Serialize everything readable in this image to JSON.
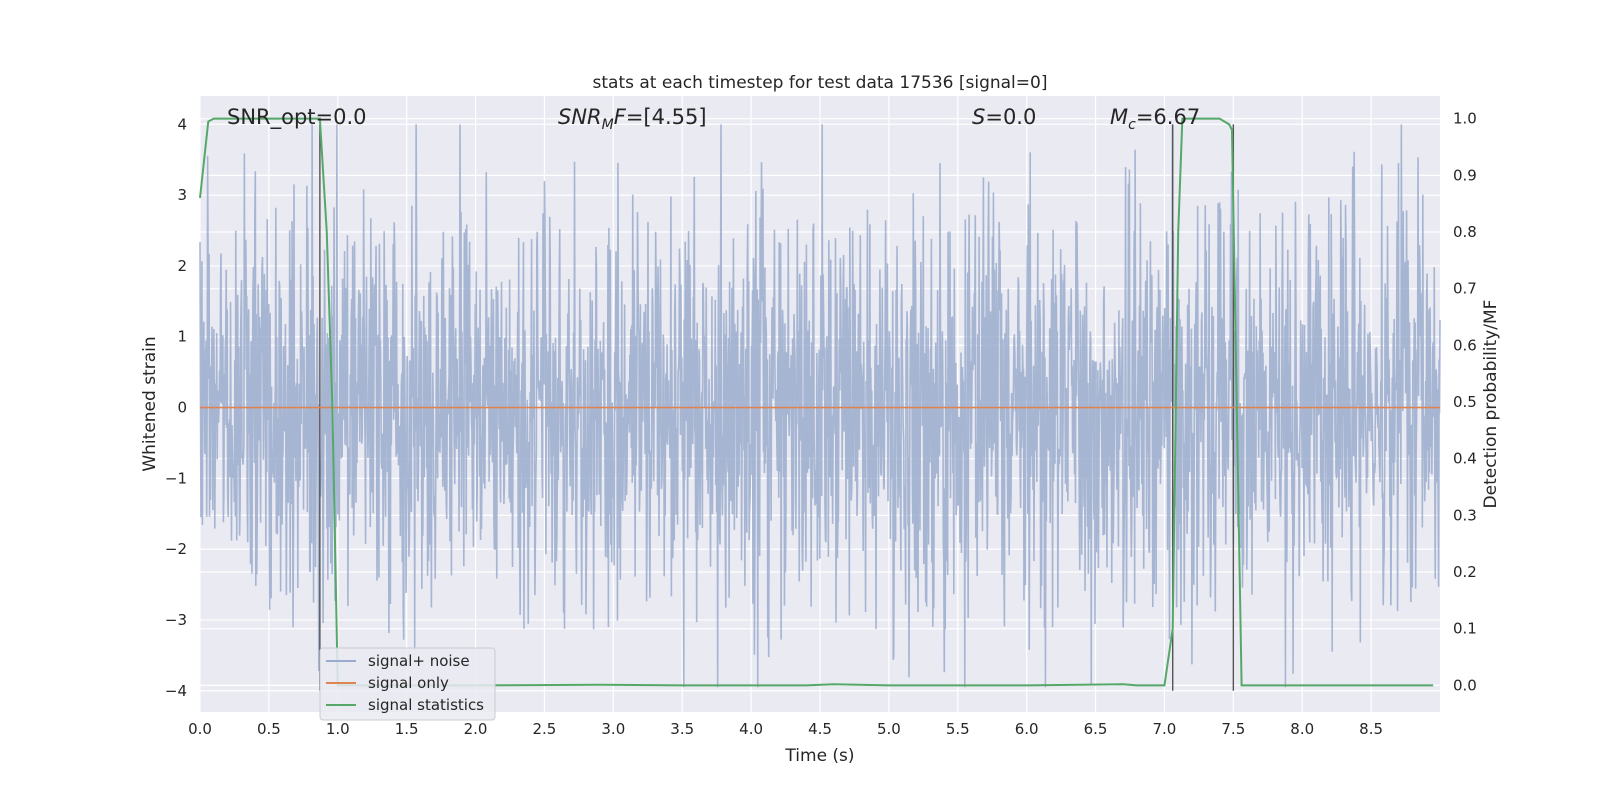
{
  "chart_data": {
    "type": "line",
    "title": "stats at each timestep for test data 17536 [signal=0]",
    "xlabel": "Time (s)",
    "ylabel_left": "Whitened strain",
    "ylabel_right": "Detection probability/MF",
    "xlim": [
      0.0,
      9.0
    ],
    "ylim_left": [
      -4.3,
      4.4
    ],
    "ylim_right": [
      -0.047,
      1.04
    ],
    "x_ticks": [
      "0.0",
      "0.5",
      "1.0",
      "1.5",
      "2.0",
      "2.5",
      "3.0",
      "3.5",
      "4.0",
      "4.5",
      "5.0",
      "5.5",
      "6.0",
      "6.5",
      "7.0",
      "7.5",
      "8.0",
      "8.5"
    ],
    "y_ticks_left": [
      "4",
      "3",
      "2",
      "1",
      "0",
      "−1",
      "−2",
      "−3",
      "−4"
    ],
    "y_ticks_right": [
      "1.0",
      "0.9",
      "0.8",
      "0.7",
      "0.6",
      "0.5",
      "0.4",
      "0.3",
      "0.2",
      "0.1",
      "0.0"
    ],
    "grid": true,
    "legend_position": "lower-left",
    "annotations": [
      {
        "id": "snr-opt",
        "text": "SNR_opt=0.0",
        "x": 0.2
      },
      {
        "id": "snr-mf",
        "text": "=[4.55]",
        "x": 2.6
      },
      {
        "id": "s-stat",
        "text": "=0.0",
        "x": 5.6
      },
      {
        "id": "mc",
        "text": "=6.67",
        "x": 6.6
      }
    ],
    "annotation_symbols": {
      "snr": "SNR",
      "mf": "M",
      "f": "F",
      "s": "S",
      "mc": "M",
      "c": "c"
    },
    "series": [
      {
        "name": "signal+ noise",
        "color": "#9aabcd",
        "description_kind": "noise",
        "amplitude_std": 1.4,
        "x_range": [
          0.0,
          9.0
        ]
      },
      {
        "name": "signal only",
        "color": "#dd8452",
        "x": [
          0.0,
          9.0
        ],
        "values": [
          0.0,
          0.0
        ]
      },
      {
        "name": "signal statistics",
        "color": "#55a868",
        "axis": "right",
        "x": [
          0.0,
          0.06,
          0.1,
          0.3,
          0.5,
          0.7,
          0.87,
          0.92,
          0.96,
          1.0,
          1.5,
          2.0,
          2.9,
          3.5,
          4.0,
          4.4,
          4.6,
          5.0,
          6.0,
          6.7,
          6.8,
          7.0,
          7.06,
          7.1,
          7.13,
          7.4,
          7.47,
          7.49,
          7.56,
          8.0,
          8.5,
          8.95
        ],
        "values": [
          0.86,
          0.995,
          1.0,
          1.0,
          1.0,
          1.0,
          1.0,
          0.8,
          0.5,
          0.0,
          0.0,
          0.0,
          0.001,
          0.0,
          0.0,
          0.0,
          0.002,
          0.0,
          0.0,
          0.002,
          0.0,
          0.0,
          0.1,
          0.8,
          1.0,
          1.0,
          0.99,
          0.98,
          0.0,
          0.0,
          0.0,
          0.0
        ]
      }
    ],
    "vertical_lines": [
      0.87,
      7.06,
      7.5
    ]
  }
}
